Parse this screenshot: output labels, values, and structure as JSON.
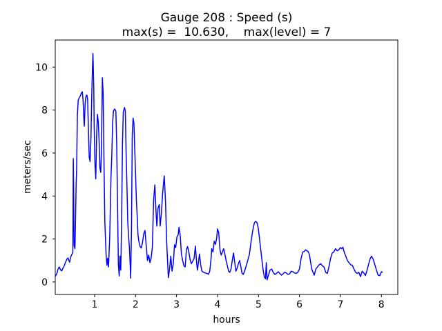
{
  "figure": {
    "background": "#ffffff",
    "axes_color": "#000000"
  },
  "chart_data": {
    "type": "line",
    "title": "Gauge 208 : Speed (s)",
    "subtitle": "max(s) =  10.630,    max(level) = 7",
    "xlabel": "hours",
    "ylabel": "meters/sec",
    "max_s": 10.63,
    "max_level": 7,
    "line_color": "#0000ff",
    "line_width": 1.5,
    "grid": false,
    "legend": null,
    "xlim": [
      0.04,
      8.4
    ],
    "ylim": [
      -0.58,
      11.26
    ],
    "xticks": [
      1,
      2,
      3,
      4,
      5,
      6,
      7,
      8
    ],
    "yticks": [
      0,
      2,
      4,
      6,
      8,
      10
    ],
    "series": [
      {
        "name": "Speed (s)",
        "points": [
          [
            0.04,
            0.26
          ],
          [
            0.06,
            0.33
          ],
          [
            0.08,
            0.4
          ],
          [
            0.1,
            0.55
          ],
          [
            0.12,
            0.65
          ],
          [
            0.14,
            0.7
          ],
          [
            0.16,
            0.6
          ],
          [
            0.18,
            0.54
          ],
          [
            0.2,
            0.52
          ],
          [
            0.22,
            0.62
          ],
          [
            0.24,
            0.68
          ],
          [
            0.26,
            0.76
          ],
          [
            0.28,
            0.86
          ],
          [
            0.3,
            0.96
          ],
          [
            0.33,
            1.08
          ],
          [
            0.35,
            1.12
          ],
          [
            0.37,
            1.02
          ],
          [
            0.39,
            0.92
          ],
          [
            0.41,
            1.12
          ],
          [
            0.43,
            1.22
          ],
          [
            0.45,
            1.3
          ],
          [
            0.47,
            1.38
          ],
          [
            0.48,
            5.74
          ],
          [
            0.49,
            4.2
          ],
          [
            0.5,
            1.7
          ],
          [
            0.52,
            1.55
          ],
          [
            0.53,
            2.4
          ],
          [
            0.55,
            4.6
          ],
          [
            0.56,
            5.1
          ],
          [
            0.58,
            7.7
          ],
          [
            0.6,
            8.45
          ],
          [
            0.62,
            8.55
          ],
          [
            0.64,
            8.62
          ],
          [
            0.66,
            8.7
          ],
          [
            0.68,
            8.8
          ],
          [
            0.7,
            8.85
          ],
          [
            0.72,
            8.45
          ],
          [
            0.74,
            7.55
          ],
          [
            0.75,
            7.25
          ],
          [
            0.77,
            8.3
          ],
          [
            0.79,
            8.65
          ],
          [
            0.81,
            8.7
          ],
          [
            0.83,
            8.5
          ],
          [
            0.85,
            7.0
          ],
          [
            0.87,
            5.8
          ],
          [
            0.89,
            5.6
          ],
          [
            0.91,
            6.6
          ],
          [
            0.93,
            8.6
          ],
          [
            0.95,
            10.1
          ],
          [
            0.96,
            10.63
          ],
          [
            0.98,
            9.0
          ],
          [
            0.99,
            7.2
          ],
          [
            1.01,
            5.4
          ],
          [
            1.03,
            4.8
          ],
          [
            1.05,
            6.8
          ],
          [
            1.07,
            7.8
          ],
          [
            1.09,
            7.45
          ],
          [
            1.11,
            6.6
          ],
          [
            1.13,
            5.3
          ],
          [
            1.15,
            5.1
          ],
          [
            1.17,
            6.3
          ],
          [
            1.19,
            9.5
          ],
          [
            1.21,
            8.8
          ],
          [
            1.23,
            5.5
          ],
          [
            1.25,
            2.8
          ],
          [
            1.28,
            1.3
          ],
          [
            1.3,
            0.78
          ],
          [
            1.32,
            1.1
          ],
          [
            1.34,
            0.7
          ],
          [
            1.37,
            2.1
          ],
          [
            1.4,
            4.9
          ],
          [
            1.42,
            5.9
          ],
          [
            1.44,
            7.4
          ],
          [
            1.46,
            7.95
          ],
          [
            1.49,
            8.05
          ],
          [
            1.52,
            7.95
          ],
          [
            1.54,
            6.4
          ],
          [
            1.56,
            3.6
          ],
          [
            1.58,
            0.8
          ],
          [
            1.6,
            0.28
          ],
          [
            1.62,
            1.2
          ],
          [
            1.64,
            0.55
          ],
          [
            1.66,
            2.8
          ],
          [
            1.68,
            6.4
          ],
          [
            1.7,
            7.9
          ],
          [
            1.73,
            8.12
          ],
          [
            1.75,
            7.95
          ],
          [
            1.77,
            6.0
          ],
          [
            1.79,
            4.5
          ],
          [
            1.81,
            2.8
          ],
          [
            1.83,
            2.1
          ],
          [
            1.85,
            1.6
          ],
          [
            1.87,
            0.7
          ],
          [
            1.88,
            0.18
          ],
          [
            1.9,
            2.5
          ],
          [
            1.92,
            6.8
          ],
          [
            1.94,
            7.62
          ],
          [
            1.96,
            7.4
          ],
          [
            1.98,
            6.2
          ],
          [
            2.0,
            5.0
          ],
          [
            2.02,
            3.8
          ],
          [
            2.04,
            3.05
          ],
          [
            2.06,
            2.2
          ],
          [
            2.08,
            1.9
          ],
          [
            2.11,
            1.65
          ],
          [
            2.14,
            1.58
          ],
          [
            2.17,
            1.85
          ],
          [
            2.2,
            2.25
          ],
          [
            2.23,
            2.4
          ],
          [
            2.26,
            1.7
          ],
          [
            2.29,
            1.0
          ],
          [
            2.32,
            1.25
          ],
          [
            2.35,
            0.9
          ],
          [
            2.38,
            1.1
          ],
          [
            2.41,
            1.6
          ],
          [
            2.44,
            3.8
          ],
          [
            2.47,
            4.52
          ],
          [
            2.5,
            3.2
          ],
          [
            2.52,
            2.6
          ],
          [
            2.55,
            3.45
          ],
          [
            2.58,
            3.6
          ],
          [
            2.6,
            2.6
          ],
          [
            2.63,
            3.2
          ],
          [
            2.66,
            4.1
          ],
          [
            2.7,
            4.94
          ],
          [
            2.73,
            3.8
          ],
          [
            2.76,
            1.8
          ],
          [
            2.8,
            0.2
          ],
          [
            2.83,
            0.6
          ],
          [
            2.86,
            1.2
          ],
          [
            2.89,
            0.5
          ],
          [
            2.92,
            0.85
          ],
          [
            2.95,
            1.73
          ],
          [
            2.98,
            1.6
          ],
          [
            3.01,
            2.1
          ],
          [
            3.04,
            2.2
          ],
          [
            3.06,
            2.55
          ],
          [
            3.09,
            2.15
          ],
          [
            3.12,
            1.3
          ],
          [
            3.15,
            1.0
          ],
          [
            3.18,
            0.75
          ],
          [
            3.21,
            0.7
          ],
          [
            3.24,
            1.5
          ],
          [
            3.27,
            1.65
          ],
          [
            3.3,
            1.4
          ],
          [
            3.33,
            1.05
          ],
          [
            3.36,
            0.85
          ],
          [
            3.39,
            0.95
          ],
          [
            3.43,
            1.1
          ],
          [
            3.46,
            1.67
          ],
          [
            3.49,
            0.9
          ],
          [
            3.51,
            0.55
          ],
          [
            3.54,
            1.0
          ],
          [
            3.56,
            1.3
          ],
          [
            3.59,
            0.8
          ],
          [
            3.62,
            0.5
          ],
          [
            3.66,
            0.45
          ],
          [
            3.7,
            0.42
          ],
          [
            3.74,
            0.4
          ],
          [
            3.78,
            0.36
          ],
          [
            3.81,
            0.5
          ],
          [
            3.84,
            1.05
          ],
          [
            3.86,
            1.55
          ],
          [
            3.89,
            1.4
          ],
          [
            3.92,
            1.9
          ],
          [
            3.95,
            1.75
          ],
          [
            3.98,
            2.05
          ],
          [
            4.0,
            2.47
          ],
          [
            4.03,
            2.3
          ],
          [
            4.06,
            1.5
          ],
          [
            4.09,
            1.25
          ],
          [
            4.12,
            1.4
          ],
          [
            4.15,
            1.55
          ],
          [
            4.18,
            1.3
          ],
          [
            4.21,
            1.0
          ],
          [
            4.24,
            0.75
          ],
          [
            4.27,
            0.5
          ],
          [
            4.3,
            0.45
          ],
          [
            4.33,
            0.6
          ],
          [
            4.36,
            1.0
          ],
          [
            4.39,
            1.35
          ],
          [
            4.42,
            0.9
          ],
          [
            4.45,
            0.5
          ],
          [
            4.48,
            0.65
          ],
          [
            4.51,
            0.85
          ],
          [
            4.54,
            1.0
          ],
          [
            4.57,
            0.7
          ],
          [
            4.6,
            0.4
          ],
          [
            4.63,
            0.35
          ],
          [
            4.66,
            0.5
          ],
          [
            4.7,
            0.75
          ],
          [
            4.74,
            1.02
          ],
          [
            4.78,
            1.3
          ],
          [
            4.82,
            1.9
          ],
          [
            4.86,
            2.4
          ],
          [
            4.9,
            2.75
          ],
          [
            4.93,
            2.82
          ],
          [
            4.96,
            2.78
          ],
          [
            4.99,
            2.55
          ],
          [
            5.02,
            2.1
          ],
          [
            5.05,
            1.6
          ],
          [
            5.08,
            1.1
          ],
          [
            5.11,
            0.6
          ],
          [
            5.14,
            0.25
          ],
          [
            5.17,
            0.15
          ],
          [
            5.19,
            0.9
          ],
          [
            5.21,
            0.1
          ],
          [
            5.24,
            0.3
          ],
          [
            5.28,
            0.55
          ],
          [
            5.32,
            0.6
          ],
          [
            5.36,
            0.45
          ],
          [
            5.4,
            0.35
          ],
          [
            5.44,
            0.4
          ],
          [
            5.48,
            0.48
          ],
          [
            5.52,
            0.4
          ],
          [
            5.56,
            0.32
          ],
          [
            5.6,
            0.38
          ],
          [
            5.64,
            0.45
          ],
          [
            5.68,
            0.42
          ],
          [
            5.72,
            0.35
          ],
          [
            5.76,
            0.38
          ],
          [
            5.8,
            0.5
          ],
          [
            5.84,
            0.48
          ],
          [
            5.88,
            0.42
          ],
          [
            5.92,
            0.4
          ],
          [
            5.96,
            0.45
          ],
          [
            6.0,
            0.6
          ],
          [
            6.04,
            1.1
          ],
          [
            6.08,
            1.4
          ],
          [
            6.12,
            1.42
          ],
          [
            6.15,
            1.5
          ],
          [
            6.18,
            1.45
          ],
          [
            6.21,
            1.42
          ],
          [
            6.24,
            1.3
          ],
          [
            6.27,
            0.95
          ],
          [
            6.3,
            0.6
          ],
          [
            6.33,
            0.45
          ],
          [
            6.36,
            0.32
          ],
          [
            6.4,
            0.6
          ],
          [
            6.44,
            0.7
          ],
          [
            6.48,
            0.8
          ],
          [
            6.52,
            0.85
          ],
          [
            6.56,
            0.75
          ],
          [
            6.6,
            0.7
          ],
          [
            6.64,
            0.45
          ],
          [
            6.68,
            0.4
          ],
          [
            6.72,
            0.7
          ],
          [
            6.76,
            1.1
          ],
          [
            6.8,
            1.35
          ],
          [
            6.84,
            1.4
          ],
          [
            6.88,
            1.55
          ],
          [
            6.92,
            1.45
          ],
          [
            6.96,
            1.5
          ],
          [
            7.0,
            1.6
          ],
          [
            7.03,
            1.55
          ],
          [
            7.06,
            1.62
          ],
          [
            7.09,
            1.4
          ],
          [
            7.13,
            1.2
          ],
          [
            7.17,
            1.0
          ],
          [
            7.21,
            0.9
          ],
          [
            7.25,
            0.8
          ],
          [
            7.29,
            0.78
          ],
          [
            7.33,
            0.6
          ],
          [
            7.37,
            0.45
          ],
          [
            7.41,
            0.4
          ],
          [
            7.45,
            0.45
          ],
          [
            7.49,
            0.25
          ],
          [
            7.53,
            0.5
          ],
          [
            7.57,
            0.42
          ],
          [
            7.61,
            0.3
          ],
          [
            7.65,
            0.55
          ],
          [
            7.69,
            0.85
          ],
          [
            7.73,
            1.1
          ],
          [
            7.76,
            1.2
          ],
          [
            7.8,
            1.05
          ],
          [
            7.84,
            0.8
          ],
          [
            7.88,
            0.55
          ],
          [
            7.92,
            0.32
          ],
          [
            7.96,
            0.3
          ],
          [
            8.0,
            0.48
          ],
          [
            8.02,
            0.45
          ]
        ]
      }
    ]
  }
}
